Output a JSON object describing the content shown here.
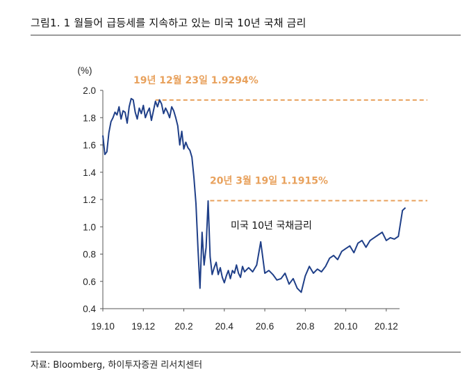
{
  "figure": {
    "title": "그림1.  1 월들어 급등세를 지속하고 있는 미국 10년 국채 금리",
    "source": "자료: Bloomberg, 하이투자증권 리서치센터"
  },
  "chart_data": {
    "type": "line",
    "ylabel": "(%)",
    "ylim": [
      0.4,
      2.0
    ],
    "yticks": [
      "0.4",
      "0.6",
      "0.8",
      "1.0",
      "1.2",
      "1.4",
      "1.6",
      "1.8",
      "2.0"
    ],
    "xticks": [
      "19.10",
      "19.12",
      "20.2",
      "20.4",
      "20.6",
      "20.8",
      "20.10",
      "20.12"
    ],
    "xlim": [
      0,
      15.0
    ],
    "series": [
      {
        "name": "미국 10년 국채금리",
        "color": "#1F3F88",
        "x": [
          0.0,
          0.1,
          0.2,
          0.3,
          0.4,
          0.5,
          0.6,
          0.7,
          0.8,
          0.9,
          1.0,
          1.1,
          1.2,
          1.3,
          1.4,
          1.5,
          1.6,
          1.7,
          1.8,
          1.9,
          2.0,
          2.1,
          2.2,
          2.3,
          2.4,
          2.5,
          2.6,
          2.7,
          2.8,
          2.9,
          3.0,
          3.1,
          3.2,
          3.3,
          3.4,
          3.5,
          3.6,
          3.7,
          3.8,
          3.9,
          4.0,
          4.1,
          4.2,
          4.3,
          4.4,
          4.5,
          4.6,
          4.7,
          4.8,
          4.9,
          5.0,
          5.1,
          5.2,
          5.3,
          5.4,
          5.5,
          5.6,
          5.7,
          5.8,
          5.9,
          6.0,
          6.1,
          6.2,
          6.3,
          6.4,
          6.5,
          6.6,
          6.7,
          6.8,
          6.9,
          7.0,
          7.2,
          7.4,
          7.6,
          7.8,
          8.0,
          8.2,
          8.4,
          8.6,
          8.8,
          9.0,
          9.2,
          9.4,
          9.6,
          9.8,
          10.0,
          10.2,
          10.4,
          10.6,
          10.8,
          11.0,
          11.2,
          11.4,
          11.6,
          11.8,
          12.0,
          12.2,
          12.4,
          12.6,
          12.8,
          13.0,
          13.2,
          13.4,
          13.6,
          13.8,
          14.0,
          14.2,
          14.4,
          14.6,
          14.8,
          14.95
        ],
        "values": [
          1.67,
          1.53,
          1.55,
          1.69,
          1.77,
          1.8,
          1.84,
          1.82,
          1.88,
          1.79,
          1.85,
          1.84,
          1.76,
          1.88,
          1.94,
          1.93,
          1.84,
          1.79,
          1.87,
          1.83,
          1.89,
          1.8,
          1.84,
          1.87,
          1.78,
          1.85,
          1.92,
          1.88,
          1.93,
          1.9,
          1.83,
          1.87,
          1.84,
          1.8,
          1.88,
          1.85,
          1.8,
          1.74,
          1.6,
          1.7,
          1.57,
          1.62,
          1.58,
          1.56,
          1.51,
          1.36,
          1.17,
          0.84,
          0.55,
          0.96,
          0.72,
          0.85,
          1.19,
          0.78,
          0.65,
          0.7,
          0.74,
          0.65,
          0.7,
          0.63,
          0.59,
          0.64,
          0.68,
          0.62,
          0.68,
          0.66,
          0.72,
          0.66,
          0.63,
          0.71,
          0.67,
          0.7,
          0.67,
          0.72,
          0.89,
          0.66,
          0.68,
          0.65,
          0.61,
          0.62,
          0.66,
          0.58,
          0.62,
          0.55,
          0.52,
          0.64,
          0.71,
          0.66,
          0.69,
          0.67,
          0.71,
          0.77,
          0.79,
          0.76,
          0.82,
          0.84,
          0.86,
          0.81,
          0.88,
          0.9,
          0.85,
          0.9,
          0.92,
          0.94,
          0.96,
          0.9,
          0.92,
          0.91,
          0.93,
          1.12,
          1.14
        ]
      }
    ],
    "reference_lines": [
      {
        "label": "19년 12월 23일 1.9294%",
        "value": 1.9294,
        "x_start": 2.6,
        "x_end": 15.0,
        "color": "#E8A15C"
      },
      {
        "label": "20년 3월 19일 1.1915%",
        "value": 1.1915,
        "x_start": 5.3,
        "x_end": 15.0,
        "color": "#E8A15C"
      }
    ]
  }
}
